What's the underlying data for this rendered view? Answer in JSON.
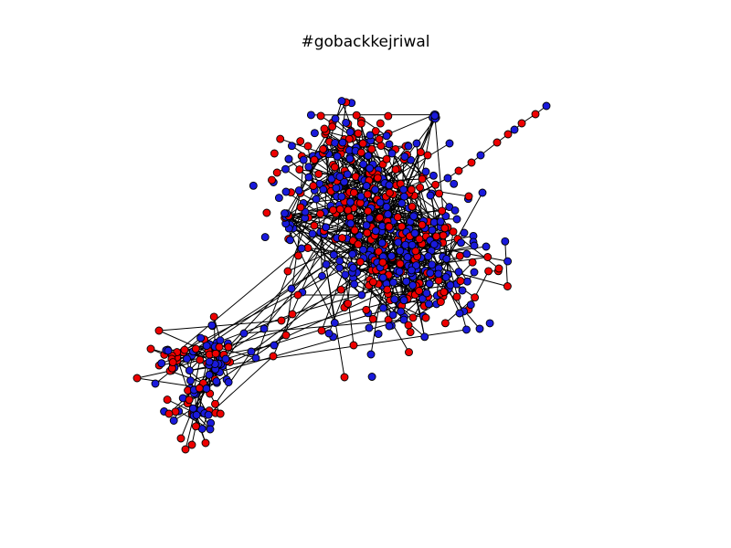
{
  "title": "#gobackkejriwal",
  "colors": {
    "group_a": "#ee0000",
    "group_b": "#1a1adc",
    "edge": "#000000",
    "node_outline": "#000000",
    "background": "#ffffff"
  }
}
